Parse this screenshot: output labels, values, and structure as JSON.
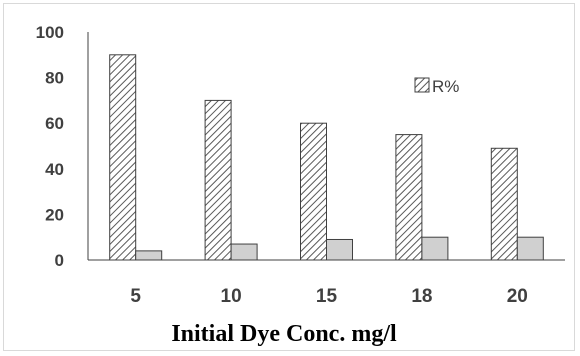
{
  "chart_data": {
    "type": "bar",
    "categories": [
      "5",
      "10",
      "15",
      "18",
      "20"
    ],
    "series": [
      {
        "name": "R%",
        "pattern": "diagonal-hatch",
        "values": [
          90,
          70,
          60,
          55,
          49
        ]
      },
      {
        "name": "",
        "color": "#d0d0d0",
        "values": [
          4,
          7,
          9,
          10,
          10
        ]
      }
    ],
    "title": "",
    "xlabel": "Initial Dye Conc. mg/l",
    "ylabel": "",
    "ylim": [
      0,
      100
    ],
    "yticks": [
      "0",
      "20",
      "40",
      "60",
      "80",
      "100"
    ],
    "grid": false,
    "legend_position": "top-right",
    "colors": {
      "axis": "#404040",
      "bar_outline": "#404040",
      "hatch": "#595959",
      "second_series_fill": "#d0d0d0"
    }
  }
}
